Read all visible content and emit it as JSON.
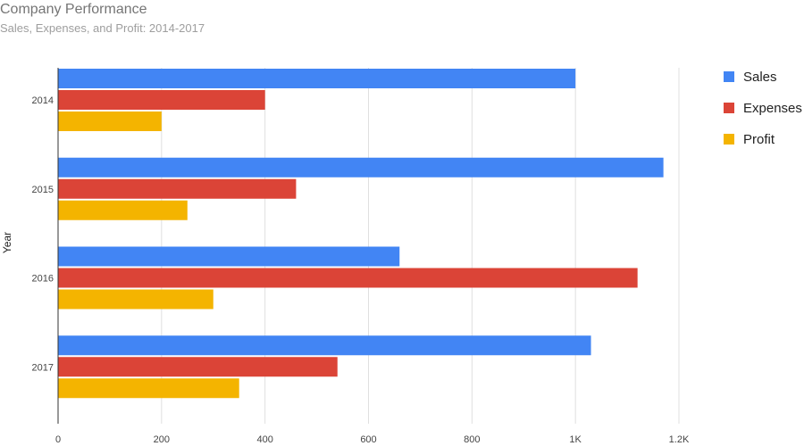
{
  "chart_data": {
    "type": "bar",
    "orientation": "horizontal",
    "title": "Company Performance",
    "subtitle": "Sales, Expenses, and Profit: 2014-2017",
    "xlabel": "",
    "ylabel": "Year",
    "categories": [
      "2014",
      "2015",
      "2016",
      "2017"
    ],
    "series": [
      {
        "name": "Sales",
        "color": "#4285f4",
        "values": [
          1000,
          1170,
          660,
          1030
        ]
      },
      {
        "name": "Expenses",
        "color": "#db4437",
        "values": [
          400,
          460,
          1120,
          540
        ]
      },
      {
        "name": "Profit",
        "color": "#f4b400",
        "values": [
          200,
          250,
          300,
          350
        ]
      }
    ],
    "xlim": [
      0,
      1200
    ],
    "x_ticks": [
      {
        "value": 0,
        "label": "0"
      },
      {
        "value": 200,
        "label": "200"
      },
      {
        "value": 400,
        "label": "400"
      },
      {
        "value": 600,
        "label": "600"
      },
      {
        "value": 800,
        "label": "800"
      },
      {
        "value": 1000,
        "label": "1K"
      },
      {
        "value": 1200,
        "label": "1.2K"
      }
    ],
    "grid": true,
    "legend_position": "right"
  }
}
